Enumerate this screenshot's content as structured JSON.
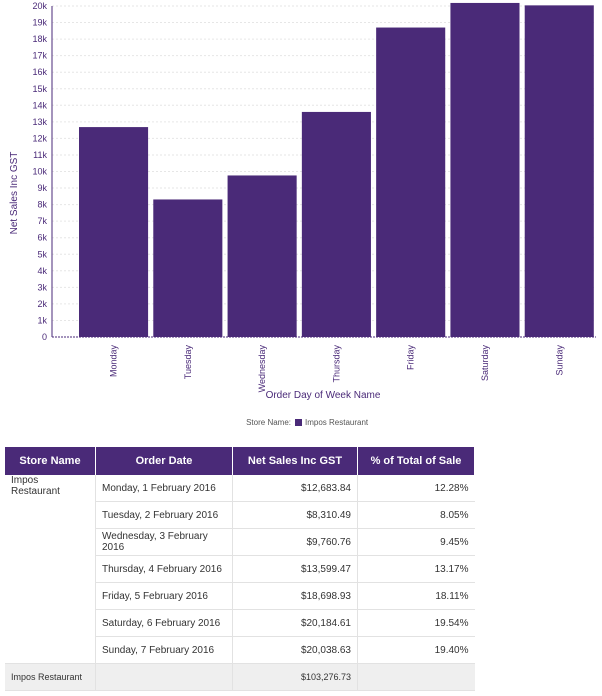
{
  "chart_data": {
    "type": "bar",
    "categories": [
      "Monday",
      "Tuesday",
      "Wednesday",
      "Thursday",
      "Friday",
      "Saturday",
      "Sunday"
    ],
    "series": [
      {
        "name": "Impos Restaurant",
        "values": [
          12683.84,
          8310.49,
          9760.76,
          13599.47,
          18698.93,
          20184.61,
          20038.63
        ]
      }
    ],
    "xlabel": "Order Day of Week Name",
    "ylabel": "Net Sales Inc GST",
    "ylim": [
      0,
      20000
    ],
    "yticks": [
      0,
      1000,
      2000,
      3000,
      4000,
      5000,
      6000,
      7000,
      8000,
      9000,
      10000,
      11000,
      12000,
      13000,
      14000,
      15000,
      16000,
      17000,
      18000,
      19000,
      20000
    ],
    "ytick_labels": [
      "0",
      "1k",
      "2k",
      "3k",
      "4k",
      "5k",
      "6k",
      "7k",
      "8k",
      "9k",
      "10k",
      "11k",
      "12k",
      "13k",
      "14k",
      "15k",
      "16k",
      "17k",
      "18k",
      "19k",
      "20k"
    ],
    "grid": true,
    "legend_title": "Store Name:",
    "legend_position": "bottom-center",
    "bar_color": "#4a2a78"
  },
  "table": {
    "headers": [
      "Store Name",
      "Order Date",
      "Net Sales Inc GST",
      "% of Total of Sale"
    ],
    "store": "Impos Restaurant",
    "rows": [
      {
        "date": "Monday, 1 February 2016",
        "sales": "$12,683.84",
        "pct": "12.28%"
      },
      {
        "date": "Tuesday, 2 February 2016",
        "sales": "$8,310.49",
        "pct": "8.05%"
      },
      {
        "date": "Wednesday, 3 February 2016",
        "sales": "$9,760.76",
        "pct": "9.45%"
      },
      {
        "date": "Thursday, 4 February 2016",
        "sales": "$13,599.47",
        "pct": "13.17%"
      },
      {
        "date": "Friday, 5 February 2016",
        "sales": "$18,698.93",
        "pct": "18.11%"
      },
      {
        "date": "Saturday, 6 February 2016",
        "sales": "$20,184.61",
        "pct": "19.54%"
      },
      {
        "date": "Sunday, 7 February 2016",
        "sales": "$20,038.63",
        "pct": "19.40%"
      }
    ],
    "total": {
      "store": "Impos Restaurant",
      "sales": "$103,276.73"
    }
  }
}
